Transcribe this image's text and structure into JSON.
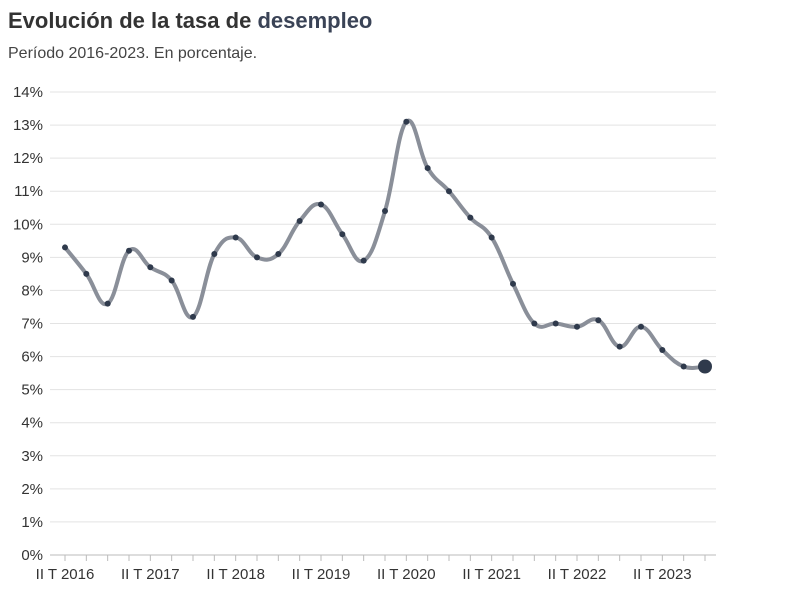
{
  "header": {
    "title_start": "Evolución de la tasa de",
    "title_accent": "desempleo",
    "subtitle": "Período 2016-2023. En porcentaje."
  },
  "colors": {
    "line": "#8a8f99",
    "point": "#2f3a4c",
    "grid": "#e3e3e3",
    "axis": "#bbbbbb"
  },
  "chart_data": {
    "type": "line",
    "title": "Evolución de la tasa de desempleo",
    "subtitle": "Período 2016-2023. En porcentaje.",
    "xlabel": "",
    "ylabel": "",
    "ylim": [
      0,
      14
    ],
    "y_ticks": [
      "0%",
      "1%",
      "2%",
      "3%",
      "4%",
      "5%",
      "6%",
      "7%",
      "8%",
      "9%",
      "10%",
      "11%",
      "12%",
      "13%",
      "14%"
    ],
    "x_tick_labels": [
      "II T 2016",
      "II T 2017",
      "II T 2018",
      "II T 2019",
      "II T 2020",
      "II T 2021",
      "II T 2022",
      "II T 2023"
    ],
    "grid": true,
    "x": [
      "II T 2016",
      "III T 2016",
      "IV T 2016",
      "I T 2017",
      "II T 2017",
      "III T 2017",
      "IV T 2017",
      "I T 2018",
      "II T 2018",
      "III T 2018",
      "IV T 2018",
      "I T 2019",
      "II T 2019",
      "III T 2019",
      "IV T 2019",
      "I T 2020",
      "II T 2020",
      "III T 2020",
      "IV T 2020",
      "I T 2021",
      "II T 2021",
      "III T 2021",
      "IV T 2021",
      "I T 2022",
      "II T 2022",
      "III T 2022",
      "IV T 2022",
      "I T 2023",
      "II T 2023",
      "III T 2023",
      "IV T 2023"
    ],
    "series": [
      {
        "values": [
          9.3,
          8.5,
          7.6,
          9.2,
          8.7,
          8.3,
          7.2,
          9.1,
          9.6,
          9.0,
          9.1,
          10.1,
          10.6,
          9.7,
          8.9,
          10.4,
          13.1,
          11.7,
          11.0,
          10.2,
          9.6,
          8.2,
          7.0,
          7.0,
          6.9,
          7.1,
          6.3,
          6.9,
          6.2,
          5.7,
          5.7
        ]
      }
    ]
  }
}
